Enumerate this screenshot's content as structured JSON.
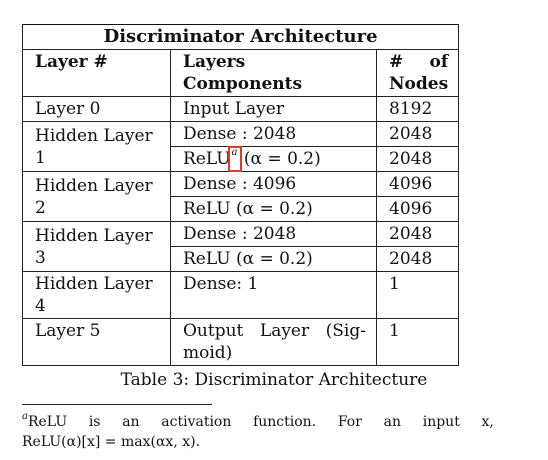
{
  "table": {
    "title": "Discriminator Architecture",
    "headers": {
      "layer": "Layer #",
      "components": "Layers Components",
      "nodes_a": "#",
      "nodes_b": "of",
      "nodes_c": "Nodes"
    },
    "rows": [
      {
        "layer": "Layer 0",
        "comp": "Input Layer",
        "nodes": "8192"
      },
      {
        "layer": "Hidden Layer 1",
        "comp1": "Dense : 2048",
        "nodes1": "2048",
        "comp2_pre": "ReLU",
        "footnote_mark": "a",
        "comp2_post": " (α = 0.2)",
        "nodes2": "2048"
      },
      {
        "layer": "Hidden Layer 2",
        "comp1": "Dense : 4096",
        "nodes1": "4096",
        "comp2": "ReLU (α = 0.2)",
        "nodes2": "4096"
      },
      {
        "layer": "Hidden Layer 3",
        "comp1": "Dense : 2048",
        "nodes1": "2048",
        "comp2": "ReLU (α = 0.2)",
        "nodes2": "2048"
      },
      {
        "layer": "Hidden Layer 4",
        "comp": "Dense: 1",
        "nodes": "1"
      },
      {
        "layer": "Layer 5",
        "comp_line1": "Output Layer (Sig-",
        "comp_line2": "moid)",
        "nodes": "1"
      }
    ]
  },
  "caption": "Table 3: Discriminator Architecture",
  "footnote": {
    "mark": "a",
    "line1_words": [
      "ReLU",
      "is",
      "an",
      "activation",
      "function.",
      "For",
      "an",
      "input",
      "x,"
    ],
    "line2": "ReLU(α)[x] = max(αx, x)."
  },
  "colors": {
    "highlight": "#e03b24"
  }
}
